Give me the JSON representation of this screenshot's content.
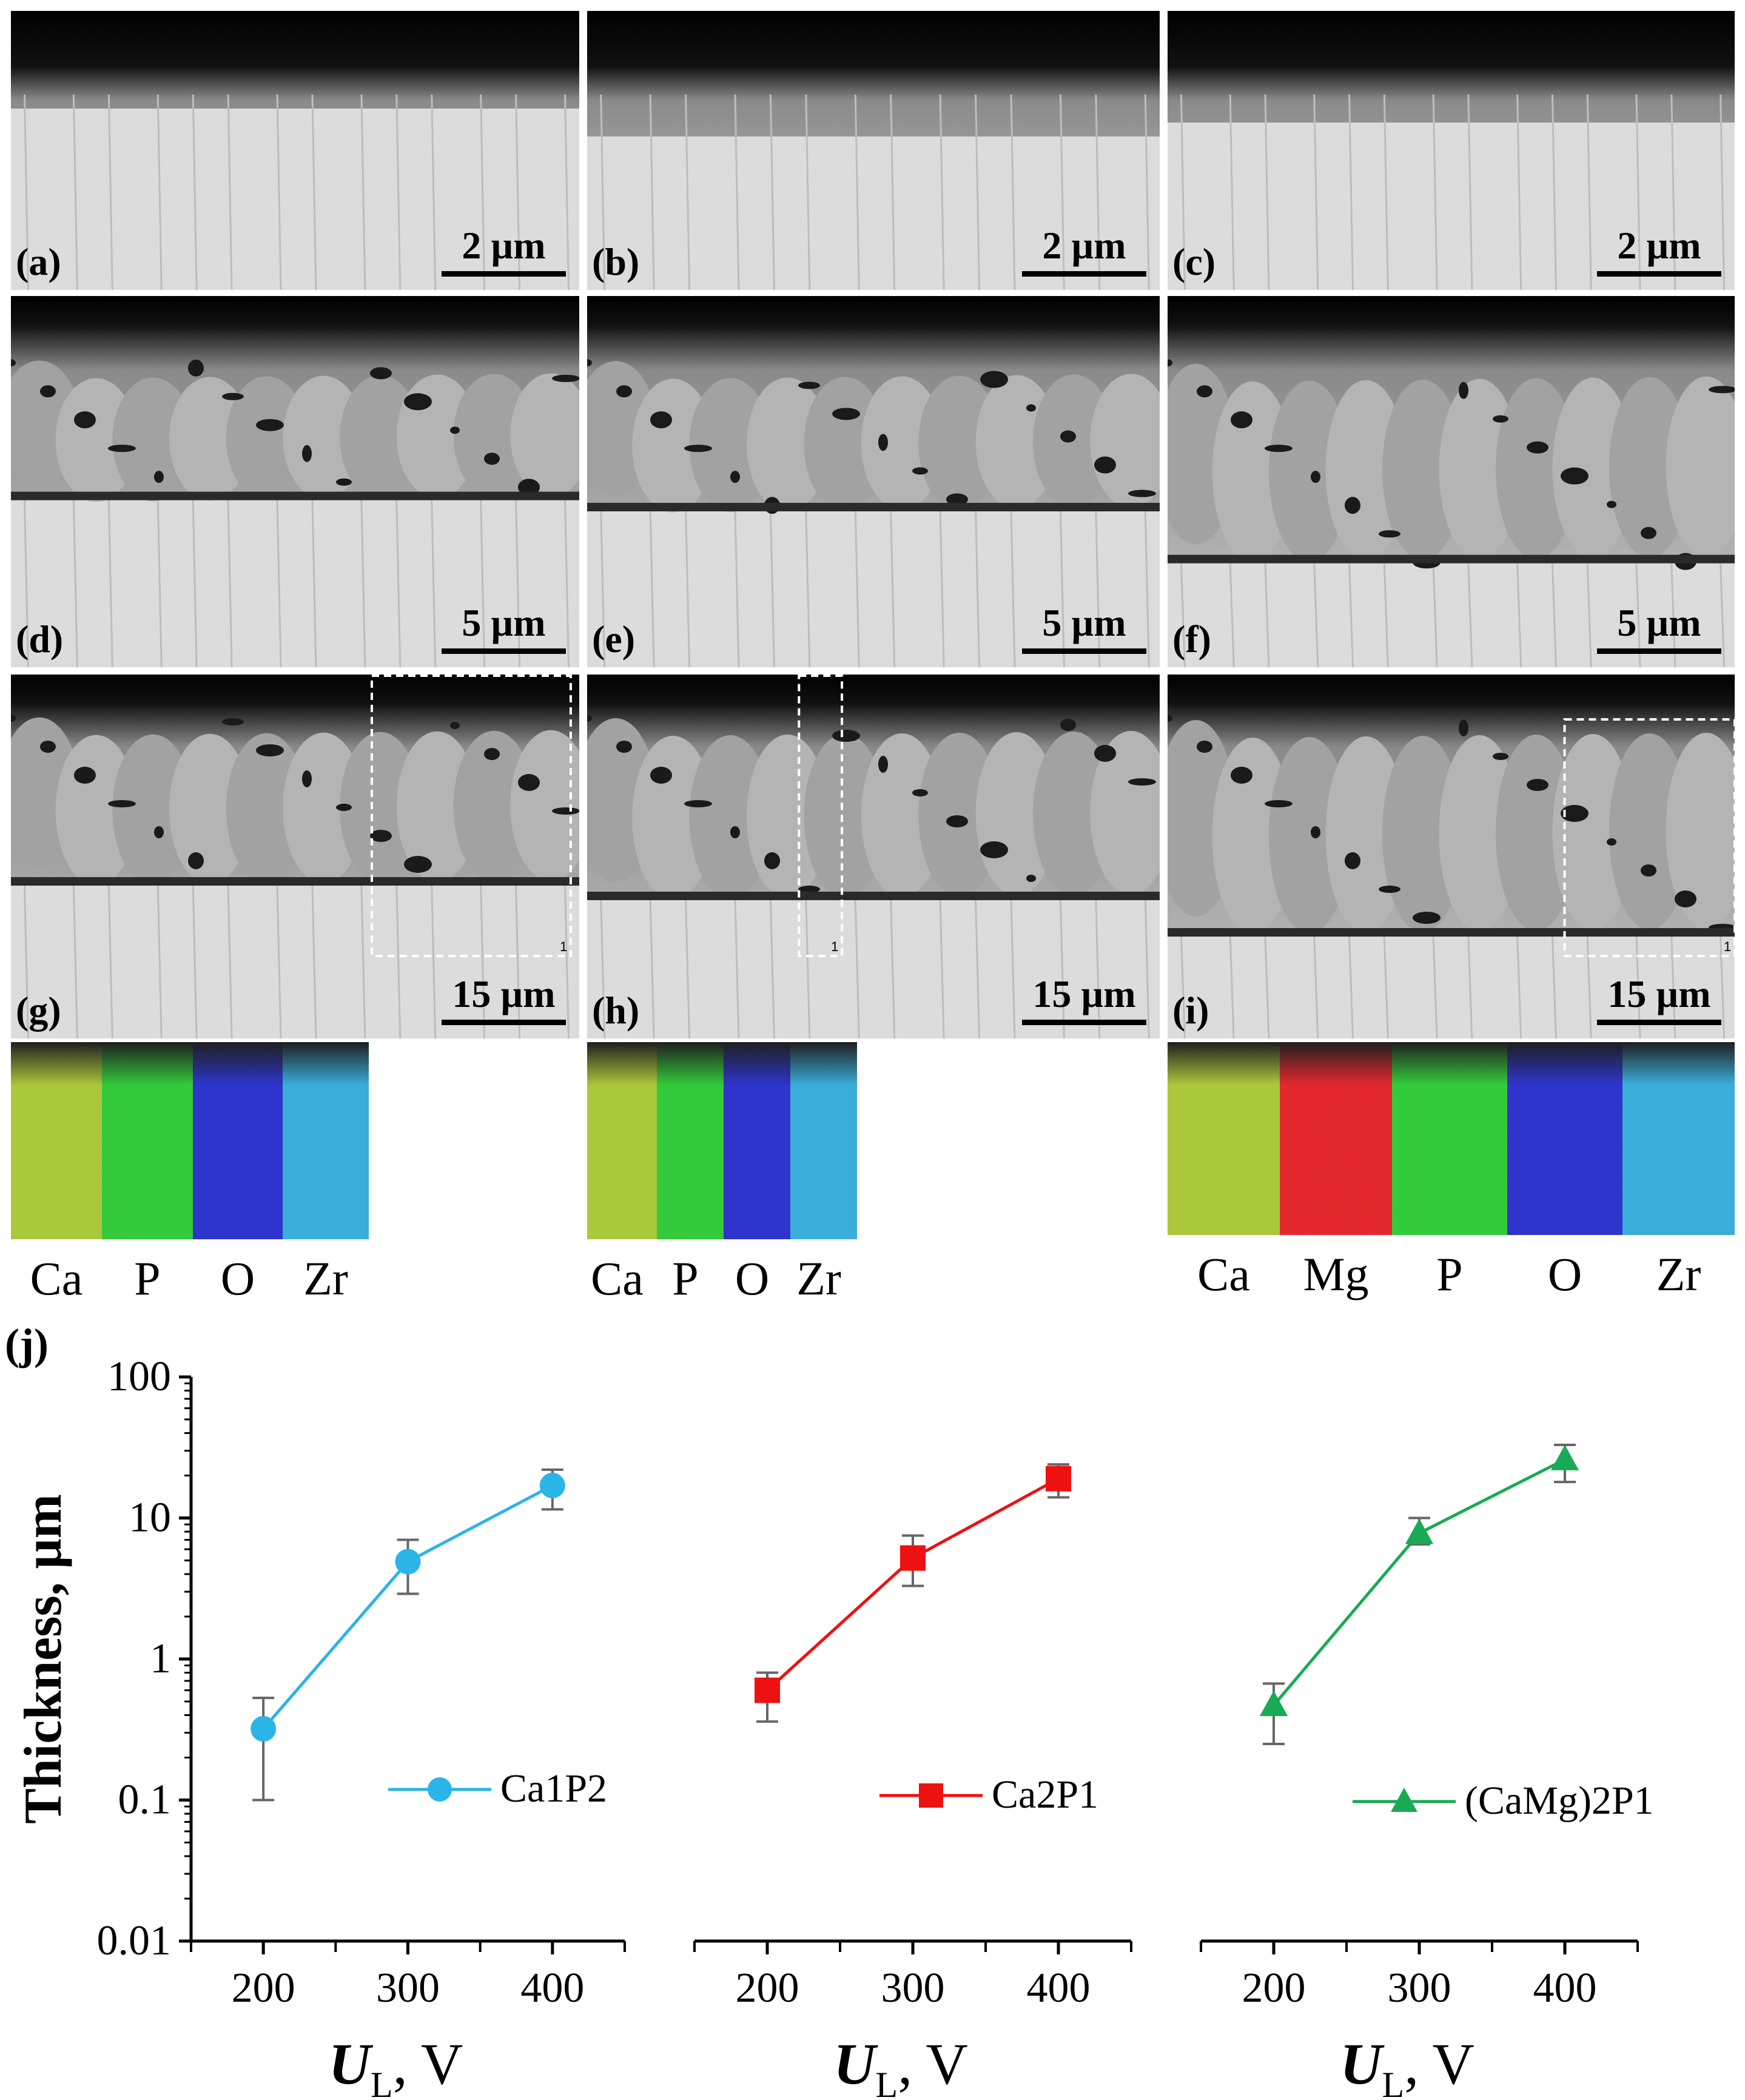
{
  "panels": [
    {
      "label": "(a)",
      "scale": "2 µm"
    },
    {
      "label": "(b)",
      "scale": "2 µm"
    },
    {
      "label": "(c)",
      "scale": "2 µm"
    },
    {
      "label": "(d)",
      "scale": "5 µm"
    },
    {
      "label": "(e)",
      "scale": "5 µm"
    },
    {
      "label": "(f)",
      "scale": "5 µm"
    },
    {
      "label": "(g)",
      "scale": "15 µm"
    },
    {
      "label": "(h)",
      "scale": "15 µm"
    },
    {
      "label": "(i)",
      "scale": "15 µm"
    }
  ],
  "map_markers": [
    "1",
    "1",
    "1"
  ],
  "edx_maps": [
    {
      "elements": [
        "Ca",
        "P",
        "O",
        "Zr"
      ]
    },
    {
      "elements": [
        "Ca",
        "P",
        "O",
        "Zr"
      ]
    },
    {
      "elements": [
        "Ca",
        "Mg",
        "P",
        "O",
        "Zr"
      ]
    }
  ],
  "element_colors": {
    "Ca": "#a4c22a",
    "Mg": "#e0161c",
    "P": "#22c62a",
    "O": "#1c23c8",
    "Zr": "#2aa6d6"
  },
  "chart_label": "(j)",
  "chart_data": {
    "type": "line",
    "ylabel": "Thickness, μm",
    "xlabel_symbol": "U",
    "xlabel_subscript": "L",
    "xlabel_unit": ", V",
    "yscale": "log",
    "ylim": [
      0.01,
      100
    ],
    "yticks": [
      "0.01",
      "0.1",
      "1",
      "10",
      "100"
    ],
    "xlim": [
      150,
      450
    ],
    "xticks": [
      "200",
      "300",
      "400"
    ],
    "series": [
      {
        "name": "Ca1P2",
        "color": "#2ab4e8",
        "marker": "circle",
        "x": [
          200,
          300,
          400
        ],
        "y": [
          0.32,
          4.9,
          17
        ],
        "err_low": [
          0.1,
          2.9,
          11.5
        ],
        "err_high": [
          0.53,
          7,
          22
        ]
      },
      {
        "name": "Ca2P1",
        "color": "#ee1111",
        "marker": "square",
        "x": [
          200,
          300,
          400
        ],
        "y": [
          0.6,
          5.2,
          19
        ],
        "err_low": [
          0.36,
          3.3,
          14
        ],
        "err_high": [
          0.8,
          7.5,
          24
        ]
      },
      {
        "name": "(CaMg)2P1",
        "color": "#1aaa55",
        "marker": "triangle",
        "x": [
          200,
          300,
          400
        ],
        "y": [
          0.47,
          7.8,
          26
        ],
        "err_low": [
          0.25,
          6.5,
          18
        ],
        "err_high": [
          0.67,
          10,
          33
        ]
      }
    ]
  }
}
